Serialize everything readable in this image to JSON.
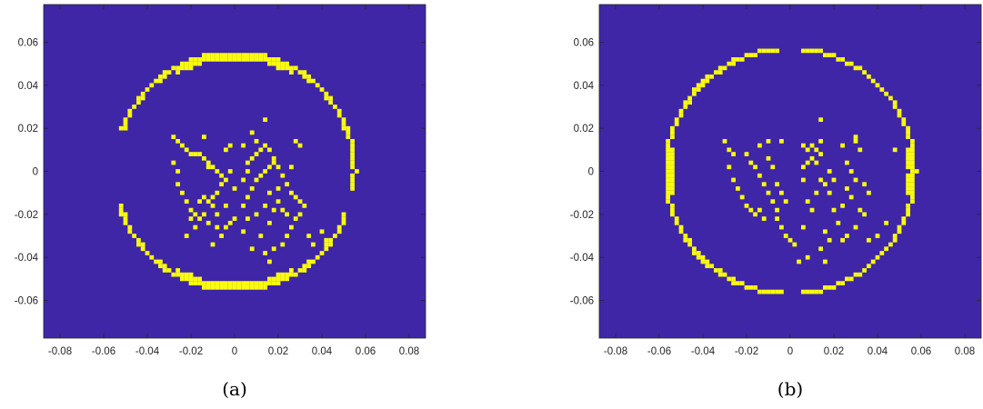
{
  "chart_data": [
    {
      "type": "heatmap",
      "caption": "(a)",
      "background_color": "#3F26A6",
      "foreground_color": "#F9FB0E",
      "xlim": [
        -0.0875,
        0.0875
      ],
      "ylim": [
        -0.0775,
        0.0775
      ],
      "xticks": [
        -0.08,
        -0.06,
        -0.04,
        -0.02,
        0,
        0.02,
        0.04,
        0.06,
        0.08
      ],
      "yticks": [
        -0.06,
        -0.04,
        -0.02,
        0,
        0.02,
        0.04,
        0.06
      ],
      "xtick_labels": [
        "-0.08",
        "-0.06",
        "-0.04",
        "-0.02",
        "0",
        "0.02",
        "0.04",
        "0.06",
        "0.08"
      ],
      "ytick_labels": [
        "-0.06",
        "-0.04",
        "-0.02",
        "0",
        "0.02",
        "0.04",
        "0.06"
      ],
      "ring": {
        "center": [
          0,
          0
        ],
        "radius": 0.055
      },
      "ring_gaps_deg": [
        [
          160,
          195
        ],
        [
          -22,
          -8
        ]
      ],
      "ring_thick_arcs_deg": [
        [
          60,
          120
        ],
        [
          240,
          300
        ]
      ],
      "interior_points": [
        [
          -0.028,
          0.016
        ],
        [
          -0.026,
          0.014
        ],
        [
          -0.024,
          0.012
        ],
        [
          -0.022,
          0.01
        ],
        [
          -0.02,
          0.008
        ],
        [
          -0.018,
          0.008
        ],
        [
          -0.016,
          0.008
        ],
        [
          -0.014,
          0.006
        ],
        [
          -0.012,
          0.004
        ],
        [
          -0.01,
          0.002
        ],
        [
          -0.008,
          0.0
        ],
        [
          -0.006,
          -0.002
        ],
        [
          -0.028,
          0.004
        ],
        [
          -0.026,
          0.0
        ],
        [
          -0.026,
          -0.006
        ],
        [
          -0.024,
          -0.01
        ],
        [
          -0.022,
          -0.014
        ],
        [
          -0.02,
          -0.018
        ],
        [
          -0.018,
          -0.02
        ],
        [
          -0.016,
          -0.022
        ],
        [
          -0.012,
          -0.024
        ],
        [
          -0.008,
          -0.026
        ],
        [
          -0.004,
          -0.026
        ],
        [
          -0.002,
          -0.024
        ],
        [
          0.0,
          -0.022
        ],
        [
          -0.014,
          -0.012
        ],
        [
          -0.012,
          -0.014
        ],
        [
          -0.01,
          -0.012
        ],
        [
          -0.008,
          -0.01
        ],
        [
          -0.006,
          -0.006
        ],
        [
          -0.004,
          -0.004
        ],
        [
          -0.002,
          0.0
        ],
        [
          -0.004,
          0.01
        ],
        [
          -0.002,
          0.012
        ],
        [
          -0.01,
          -0.016
        ],
        [
          -0.016,
          -0.014
        ],
        [
          -0.014,
          -0.02
        ],
        [
          -0.018,
          -0.026
        ],
        [
          -0.022,
          -0.03
        ],
        [
          -0.02,
          -0.022
        ],
        [
          -0.008,
          -0.02
        ],
        [
          -0.004,
          -0.016
        ],
        [
          0.0,
          -0.008
        ],
        [
          -0.006,
          -0.03
        ],
        [
          0.004,
          -0.028
        ],
        [
          0.004,
          -0.016
        ],
        [
          0.006,
          -0.012
        ],
        [
          0.008,
          -0.008
        ],
        [
          0.01,
          -0.004
        ],
        [
          0.012,
          -0.002
        ],
        [
          0.014,
          0.0
        ],
        [
          0.016,
          0.002
        ],
        [
          0.018,
          0.004
        ],
        [
          0.006,
          0.004
        ],
        [
          0.008,
          0.006
        ],
        [
          0.01,
          0.008
        ],
        [
          0.012,
          0.01
        ],
        [
          0.014,
          0.012
        ],
        [
          0.016,
          0.01
        ],
        [
          0.01,
          0.014
        ],
        [
          0.004,
          0.012
        ],
        [
          0.006,
          0.0
        ],
        [
          0.004,
          -0.004
        ],
        [
          0.008,
          0.018
        ],
        [
          0.014,
          0.024
        ],
        [
          0.018,
          0.006
        ],
        [
          0.02,
          0.002
        ],
        [
          0.022,
          -0.002
        ],
        [
          0.024,
          -0.006
        ],
        [
          0.026,
          -0.01
        ],
        [
          0.028,
          -0.012
        ],
        [
          0.03,
          -0.014
        ],
        [
          0.032,
          -0.016
        ],
        [
          0.03,
          -0.02
        ],
        [
          0.028,
          -0.022
        ],
        [
          0.026,
          -0.026
        ],
        [
          0.024,
          -0.03
        ],
        [
          0.022,
          -0.034
        ],
        [
          0.018,
          -0.036
        ],
        [
          0.014,
          -0.038
        ],
        [
          0.012,
          -0.03
        ],
        [
          0.016,
          -0.024
        ],
        [
          0.018,
          -0.018
        ],
        [
          0.02,
          -0.014
        ],
        [
          0.022,
          -0.018
        ],
        [
          0.024,
          -0.02
        ],
        [
          0.026,
          0.002
        ],
        [
          0.03,
          0.012
        ],
        [
          0.028,
          0.014
        ],
        [
          0.016,
          -0.01
        ],
        [
          0.014,
          -0.016
        ],
        [
          0.01,
          -0.02
        ],
        [
          0.008,
          -0.036
        ],
        [
          0.016,
          -0.042
        ],
        [
          -0.01,
          -0.034
        ],
        [
          0.006,
          -0.022
        ],
        [
          0.02,
          -0.008
        ],
        [
          0.034,
          -0.03
        ],
        [
          0.036,
          -0.034
        ],
        [
          0.04,
          -0.028
        ],
        [
          0.042,
          -0.032
        ],
        [
          -0.014,
          0.016
        ],
        [
          -0.012,
          0.002
        ]
      ]
    },
    {
      "type": "heatmap",
      "caption": "(b)",
      "background_color": "#3F26A6",
      "foreground_color": "#F9FB0E",
      "xlim": [
        -0.0875,
        0.0875
      ],
      "ylim": [
        -0.0775,
        0.0775
      ],
      "xticks": [
        -0.08,
        -0.06,
        -0.04,
        -0.02,
        0,
        0.02,
        0.04,
        0.06,
        0.08
      ],
      "yticks": [
        -0.06,
        -0.04,
        -0.02,
        0,
        0.02,
        0.04,
        0.06
      ],
      "xtick_labels": [
        "-0.08",
        "-0.06",
        "-0.04",
        "-0.02",
        "0",
        "0.02",
        "0.04",
        "0.06",
        "0.08"
      ],
      "ytick_labels": [
        "-0.06",
        "-0.04",
        "-0.02",
        "0",
        "0.02",
        "0.04",
        "0.06"
      ],
      "ring": {
        "center": [
          0,
          0
        ],
        "radius": 0.057
      },
      "ring_gaps_deg": [
        [
          84,
          96
        ],
        [
          266,
          274
        ]
      ],
      "ring_thick_arcs_deg": [
        [
          -12,
          12
        ],
        [
          168,
          192
        ]
      ],
      "interior_points": [
        [
          -0.03,
          0.014
        ],
        [
          -0.028,
          0.01
        ],
        [
          -0.026,
          0.008
        ],
        [
          -0.028,
          0.002
        ],
        [
          -0.026,
          -0.004
        ],
        [
          -0.024,
          -0.008
        ],
        [
          -0.022,
          -0.012
        ],
        [
          -0.02,
          -0.016
        ],
        [
          -0.018,
          -0.018
        ],
        [
          -0.016,
          -0.02
        ],
        [
          -0.02,
          0.008
        ],
        [
          -0.018,
          0.004
        ],
        [
          -0.016,
          0.002
        ],
        [
          -0.014,
          -0.002
        ],
        [
          -0.012,
          -0.006
        ],
        [
          -0.014,
          -0.018
        ],
        [
          -0.012,
          -0.022
        ],
        [
          -0.01,
          -0.01
        ],
        [
          -0.008,
          -0.014
        ],
        [
          -0.006,
          -0.018
        ],
        [
          -0.006,
          -0.006
        ],
        [
          -0.004,
          -0.01
        ],
        [
          -0.002,
          -0.014
        ],
        [
          -0.006,
          -0.022
        ],
        [
          -0.004,
          -0.026
        ],
        [
          -0.002,
          -0.03
        ],
        [
          0.0,
          -0.032
        ],
        [
          0.002,
          -0.034
        ],
        [
          -0.008,
          0.002
        ],
        [
          -0.01,
          0.006
        ],
        [
          -0.01,
          0.014
        ],
        [
          -0.004,
          0.014
        ],
        [
          0.006,
          0.012
        ],
        [
          0.008,
          0.01
        ],
        [
          0.01,
          0.012
        ],
        [
          0.012,
          0.01
        ],
        [
          0.014,
          0.008
        ],
        [
          0.01,
          0.006
        ],
        [
          0.012,
          0.004
        ],
        [
          0.008,
          0.004
        ],
        [
          0.006,
          0.002
        ],
        [
          0.014,
          0.014
        ],
        [
          0.024,
          0.012
        ],
        [
          0.03,
          0.014
        ],
        [
          0.032,
          0.01
        ],
        [
          0.026,
          0.004
        ],
        [
          0.028,
          0.0
        ],
        [
          0.026,
          -0.008
        ],
        [
          0.028,
          -0.012
        ],
        [
          0.024,
          -0.016
        ],
        [
          0.02,
          -0.018
        ],
        [
          0.022,
          -0.024
        ],
        [
          0.016,
          -0.028
        ],
        [
          0.018,
          -0.032
        ],
        [
          0.014,
          -0.036
        ],
        [
          0.024,
          -0.032
        ],
        [
          0.026,
          -0.03
        ],
        [
          0.03,
          -0.026
        ],
        [
          0.032,
          -0.018
        ],
        [
          0.034,
          -0.02
        ],
        [
          0.036,
          -0.01
        ],
        [
          0.034,
          -0.006
        ],
        [
          0.03,
          -0.004
        ],
        [
          0.018,
          -0.01
        ],
        [
          0.016,
          -0.006
        ],
        [
          0.014,
          -0.004
        ],
        [
          0.006,
          -0.004
        ],
        [
          0.018,
          0.0
        ],
        [
          0.02,
          -0.004
        ],
        [
          0.012,
          -0.01
        ],
        [
          0.008,
          -0.014
        ],
        [
          0.01,
          -0.018
        ],
        [
          0.006,
          -0.026
        ],
        [
          0.008,
          -0.04
        ],
        [
          0.004,
          -0.042
        ],
        [
          0.016,
          -0.042
        ],
        [
          0.036,
          -0.032
        ],
        [
          0.04,
          -0.03
        ],
        [
          0.044,
          -0.024
        ],
        [
          0.048,
          0.01
        ],
        [
          0.014,
          0.024
        ],
        [
          -0.014,
          0.012
        ],
        [
          0.03,
          0.016
        ]
      ]
    }
  ]
}
